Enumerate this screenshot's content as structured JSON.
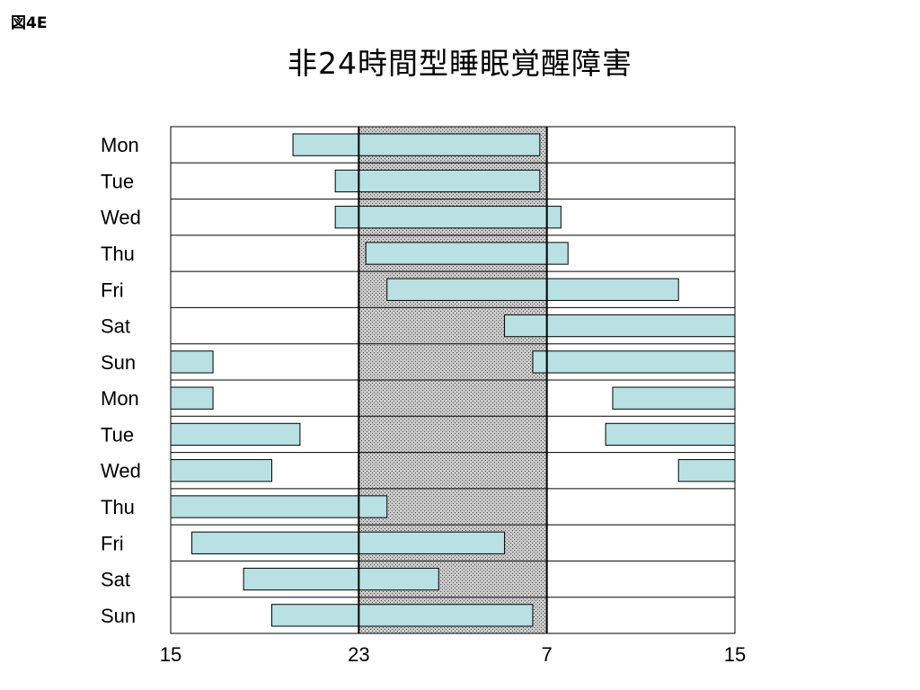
{
  "figure_label": "図4E",
  "chart_data": {
    "type": "bar",
    "orientation": "horizontal-range",
    "title": "非24時間型睡眠覚醒障害",
    "xlabel": "",
    "ylabel": "",
    "x_axis": {
      "unit": "hour of day",
      "range_hours_from_start": [
        0,
        24
      ],
      "tick_labels": [
        "15",
        "23",
        "7",
        "15"
      ],
      "tick_hours_from_start": [
        0,
        8,
        16,
        24
      ]
    },
    "shaded_band": {
      "from": "23",
      "to": "7",
      "from_hours_from_start": 8,
      "to_hours_from_start": 16
    },
    "grid": "horizontal row separators",
    "colors": {
      "bar_fill": "#b9e0e2",
      "bar_stroke": "#000000",
      "band_fill": "#b0b0b0"
    },
    "categories": [
      "Mon",
      "Tue",
      "Wed",
      "Thu",
      "Fri",
      "Sat",
      "Sun",
      "Mon",
      "Tue",
      "Wed",
      "Thu",
      "Fri",
      "Sat",
      "Sun"
    ],
    "sleep_periods": [
      [
        [
          5.2,
          15.7
        ]
      ],
      [
        [
          7.0,
          15.7
        ]
      ],
      [
        [
          7.0,
          16.6
        ]
      ],
      [
        [
          8.3,
          16.9
        ]
      ],
      [
        [
          9.2,
          21.6
        ]
      ],
      [
        [
          14.2,
          24.0
        ]
      ],
      [
        [
          0.0,
          1.8
        ],
        [
          15.4,
          24.0
        ]
      ],
      [
        [
          0.0,
          1.8
        ],
        [
          18.8,
          24.0
        ]
      ],
      [
        [
          0.0,
          5.5
        ],
        [
          18.5,
          24.0
        ]
      ],
      [
        [
          0.0,
          4.3
        ],
        [
          21.6,
          24.0
        ]
      ],
      [
        [
          0.0,
          9.2
        ]
      ],
      [
        [
          0.9,
          14.2
        ]
      ],
      [
        [
          3.1,
          11.4
        ]
      ],
      [
        [
          4.3,
          15.4
        ]
      ]
    ]
  }
}
